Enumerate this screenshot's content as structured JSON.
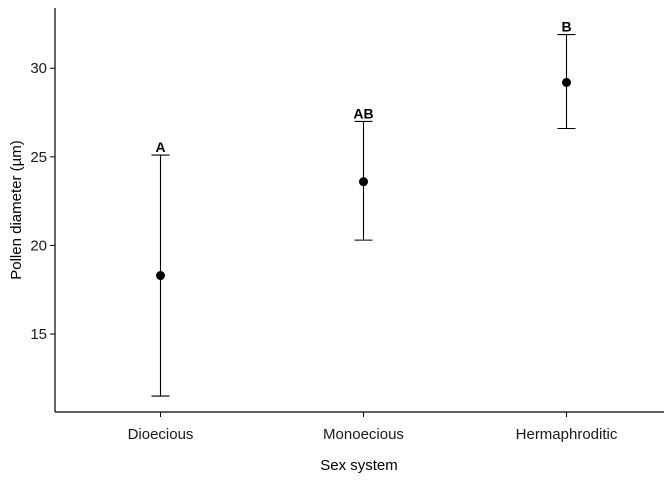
{
  "chart_data": {
    "type": "scatter",
    "xlabel": "Sex system",
    "ylabel": "Pollen diameter (µm)",
    "categories": [
      "Dioecious",
      "Monoecious",
      "Hermaphroditic"
    ],
    "points": [
      {
        "category": "Dioecious",
        "mean": 18.3,
        "lower": 11.5,
        "upper": 25.1,
        "group": "A"
      },
      {
        "category": "Monoecious",
        "mean": 23.6,
        "lower": 20.3,
        "upper": 27.0,
        "group": "AB"
      },
      {
        "category": "Hermaphroditic",
        "mean": 29.2,
        "lower": 26.6,
        "upper": 31.9,
        "group": "B"
      }
    ],
    "yticks": [
      15,
      20,
      25,
      30
    ],
    "ylim": [
      10.6,
      33.4
    ],
    "grid": false,
    "colors": {
      "point": "#000000",
      "errorbar": "#000000",
      "axis": "#000000"
    }
  }
}
